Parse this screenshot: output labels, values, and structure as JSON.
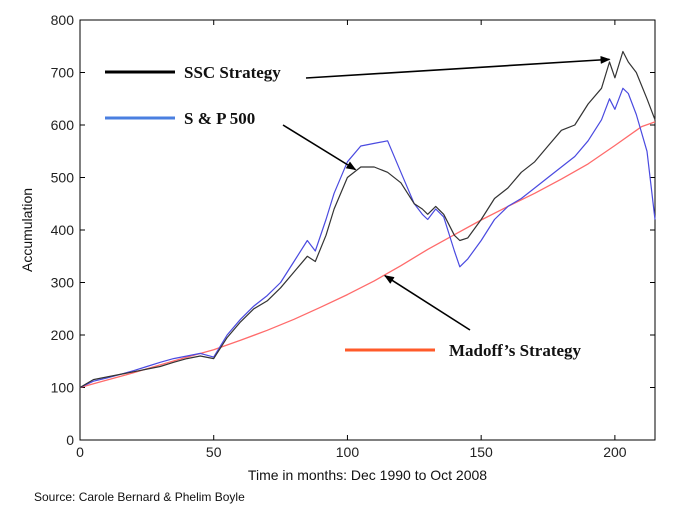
{
  "source": "Source: Carole Bernard & Phelim Boyle",
  "chart_data": {
    "type": "line",
    "title": "",
    "xlabel": "Time in months: Dec 1990 to Oct 2008",
    "ylabel": "Accumulation",
    "xlim": [
      0,
      215
    ],
    "ylim": [
      0,
      800
    ],
    "xticks": [
      0,
      50,
      100,
      150,
      200
    ],
    "yticks": [
      0,
      100,
      200,
      300,
      400,
      500,
      600,
      700,
      800
    ],
    "grid": false,
    "series": [
      {
        "name": "SSC Strategy",
        "color": "#333333",
        "x": [
          0,
          5,
          10,
          15,
          20,
          25,
          30,
          35,
          40,
          45,
          50,
          55,
          60,
          65,
          70,
          75,
          80,
          85,
          88,
          92,
          95,
          100,
          105,
          110,
          115,
          120,
          125,
          128,
          130,
          133,
          136,
          140,
          142,
          145,
          150,
          155,
          160,
          165,
          170,
          175,
          180,
          185,
          190,
          195,
          198,
          200,
          203,
          205,
          208,
          212,
          215
        ],
        "values": [
          100,
          115,
          120,
          125,
          130,
          135,
          140,
          148,
          155,
          160,
          155,
          195,
          225,
          250,
          265,
          290,
          320,
          350,
          340,
          390,
          440,
          500,
          520,
          520,
          510,
          490,
          450,
          440,
          430,
          445,
          430,
          390,
          380,
          385,
          420,
          460,
          480,
          510,
          530,
          560,
          590,
          600,
          640,
          670,
          720,
          690,
          740,
          720,
          700,
          650,
          610
        ]
      },
      {
        "name": "S & P 500",
        "color": "#4a4ae0",
        "x": [
          0,
          5,
          10,
          15,
          20,
          25,
          30,
          35,
          40,
          45,
          50,
          55,
          60,
          65,
          70,
          75,
          80,
          85,
          88,
          92,
          95,
          100,
          105,
          110,
          115,
          120,
          125,
          128,
          130,
          133,
          136,
          140,
          142,
          145,
          150,
          155,
          160,
          165,
          170,
          175,
          180,
          185,
          190,
          195,
          198,
          200,
          203,
          205,
          208,
          212,
          215
        ],
        "values": [
          100,
          112,
          118,
          125,
          132,
          140,
          148,
          155,
          160,
          165,
          158,
          200,
          230,
          255,
          275,
          300,
          340,
          380,
          360,
          420,
          470,
          530,
          560,
          565,
          570,
          510,
          450,
          430,
          420,
          440,
          425,
          360,
          330,
          345,
          380,
          420,
          445,
          460,
          480,
          500,
          520,
          540,
          570,
          610,
          650,
          630,
          670,
          660,
          620,
          550,
          420
        ]
      },
      {
        "name": "Madoff’s Strategy",
        "color": "#ff6b6b",
        "x": [
          0,
          10,
          20,
          30,
          40,
          50,
          60,
          70,
          80,
          90,
          100,
          110,
          120,
          130,
          140,
          150,
          160,
          170,
          180,
          190,
          200,
          210,
          215
        ],
        "values": [
          100,
          114,
          128,
          143,
          158,
          172,
          190,
          209,
          230,
          253,
          277,
          303,
          332,
          363,
          391,
          419,
          445,
          470,
          497,
          526,
          561,
          597,
          606
        ]
      }
    ],
    "legend": [
      {
        "label": "SSC Strategy",
        "color": "#000000"
      },
      {
        "label": "S & P 500",
        "color": "#4a7fe0"
      },
      {
        "label": "Madoff’s Strategy",
        "color": "#ff5a2a"
      }
    ],
    "annotations": [
      {
        "target": "SSC Strategy",
        "point_x": 198,
        "point_y": 725
      },
      {
        "target": "S & P 500",
        "point_x": 103,
        "point_y": 515
      },
      {
        "target": "Madoff’s Strategy",
        "point_x": 114,
        "point_y": 313
      }
    ]
  }
}
